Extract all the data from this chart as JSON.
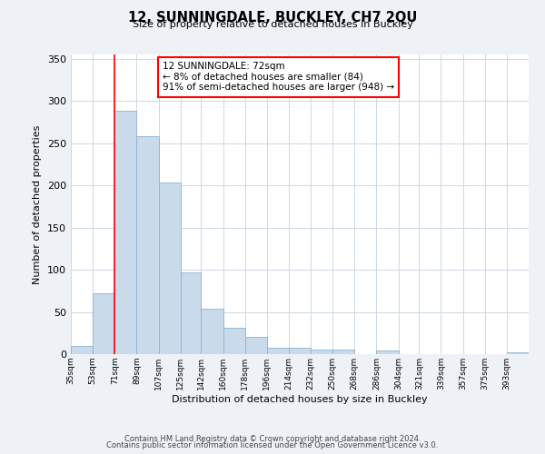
{
  "title": "12, SUNNINGDALE, BUCKLEY, CH7 2QU",
  "subtitle": "Size of property relative to detached houses in Buckley",
  "xlabel": "Distribution of detached houses by size in Buckley",
  "ylabel": "Number of detached properties",
  "bin_labels": [
    "35sqm",
    "53sqm",
    "71sqm",
    "89sqm",
    "107sqm",
    "125sqm",
    "142sqm",
    "160sqm",
    "178sqm",
    "196sqm",
    "214sqm",
    "232sqm",
    "250sqm",
    "268sqm",
    "286sqm",
    "304sqm",
    "321sqm",
    "339sqm",
    "357sqm",
    "375sqm",
    "393sqm"
  ],
  "bar_heights": [
    10,
    72,
    288,
    258,
    203,
    97,
    54,
    31,
    20,
    8,
    8,
    5,
    5,
    0,
    4,
    0,
    0,
    0,
    0,
    0,
    2
  ],
  "bar_color": "#c9daea",
  "bar_edge_color": "#8ab4d0",
  "property_line_x": 71,
  "ylim": [
    0,
    355
  ],
  "yticks": [
    0,
    50,
    100,
    150,
    200,
    250,
    300,
    350
  ],
  "annotation_title": "12 SUNNINGDALE: 72sqm",
  "annotation_line1": "← 8% of detached houses are smaller (84)",
  "annotation_line2": "91% of semi-detached houses are larger (948) →",
  "footer1": "Contains HM Land Registry data © Crown copyright and database right 2024.",
  "footer2": "Contains public sector information licensed under the Open Government Licence v3.0.",
  "background_color": "#eef2f7",
  "plot_background": "#ffffff",
  "grid_color": "#ccd8e4"
}
